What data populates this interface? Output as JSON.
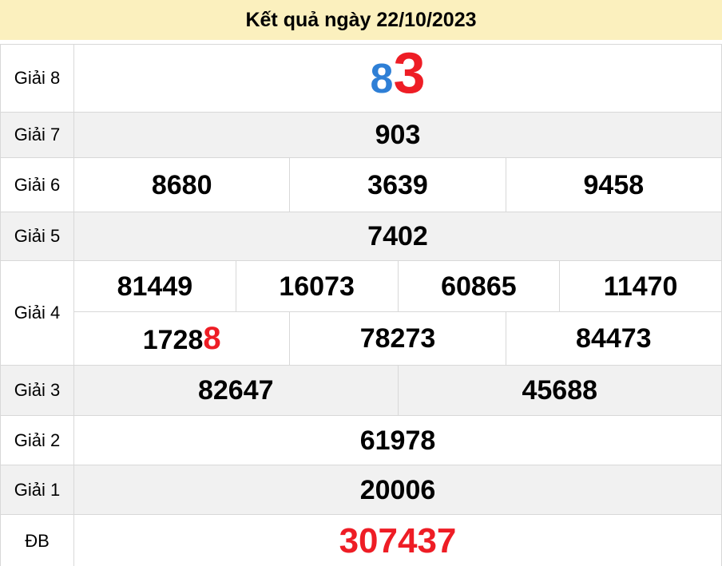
{
  "header": {
    "title": "Kết quả ngày 22/10/2023"
  },
  "colors": {
    "header_bg": "#FBF0BE",
    "alt_row_bg": "#F1F1F1",
    "border": "#D8D8D8",
    "blue_digit": "#2E7FD6",
    "red_digit": "#EE1D25"
  },
  "prizes": {
    "g8": {
      "label": "Giải 8",
      "digit_blue": "8",
      "digit_red": "3"
    },
    "g7": {
      "label": "Giải 7",
      "value": "903"
    },
    "g6": {
      "label": "Giải 6",
      "values": [
        "8680",
        "3639",
        "9458"
      ]
    },
    "g5": {
      "label": "Giải 5",
      "value": "7402"
    },
    "g4": {
      "label": "Giải 4",
      "row1": [
        "81449",
        "16073",
        "60865",
        "11470"
      ],
      "row2_first_black": "1728",
      "row2_first_red": "8",
      "row2_rest": [
        "78273",
        "84473"
      ]
    },
    "g3": {
      "label": "Giải 3",
      "values": [
        "82647",
        "45688"
      ]
    },
    "g2": {
      "label": "Giải 2",
      "value": "61978"
    },
    "g1": {
      "label": "Giải 1",
      "value": "20006"
    },
    "db": {
      "label": "ĐB",
      "value": "307437"
    }
  }
}
